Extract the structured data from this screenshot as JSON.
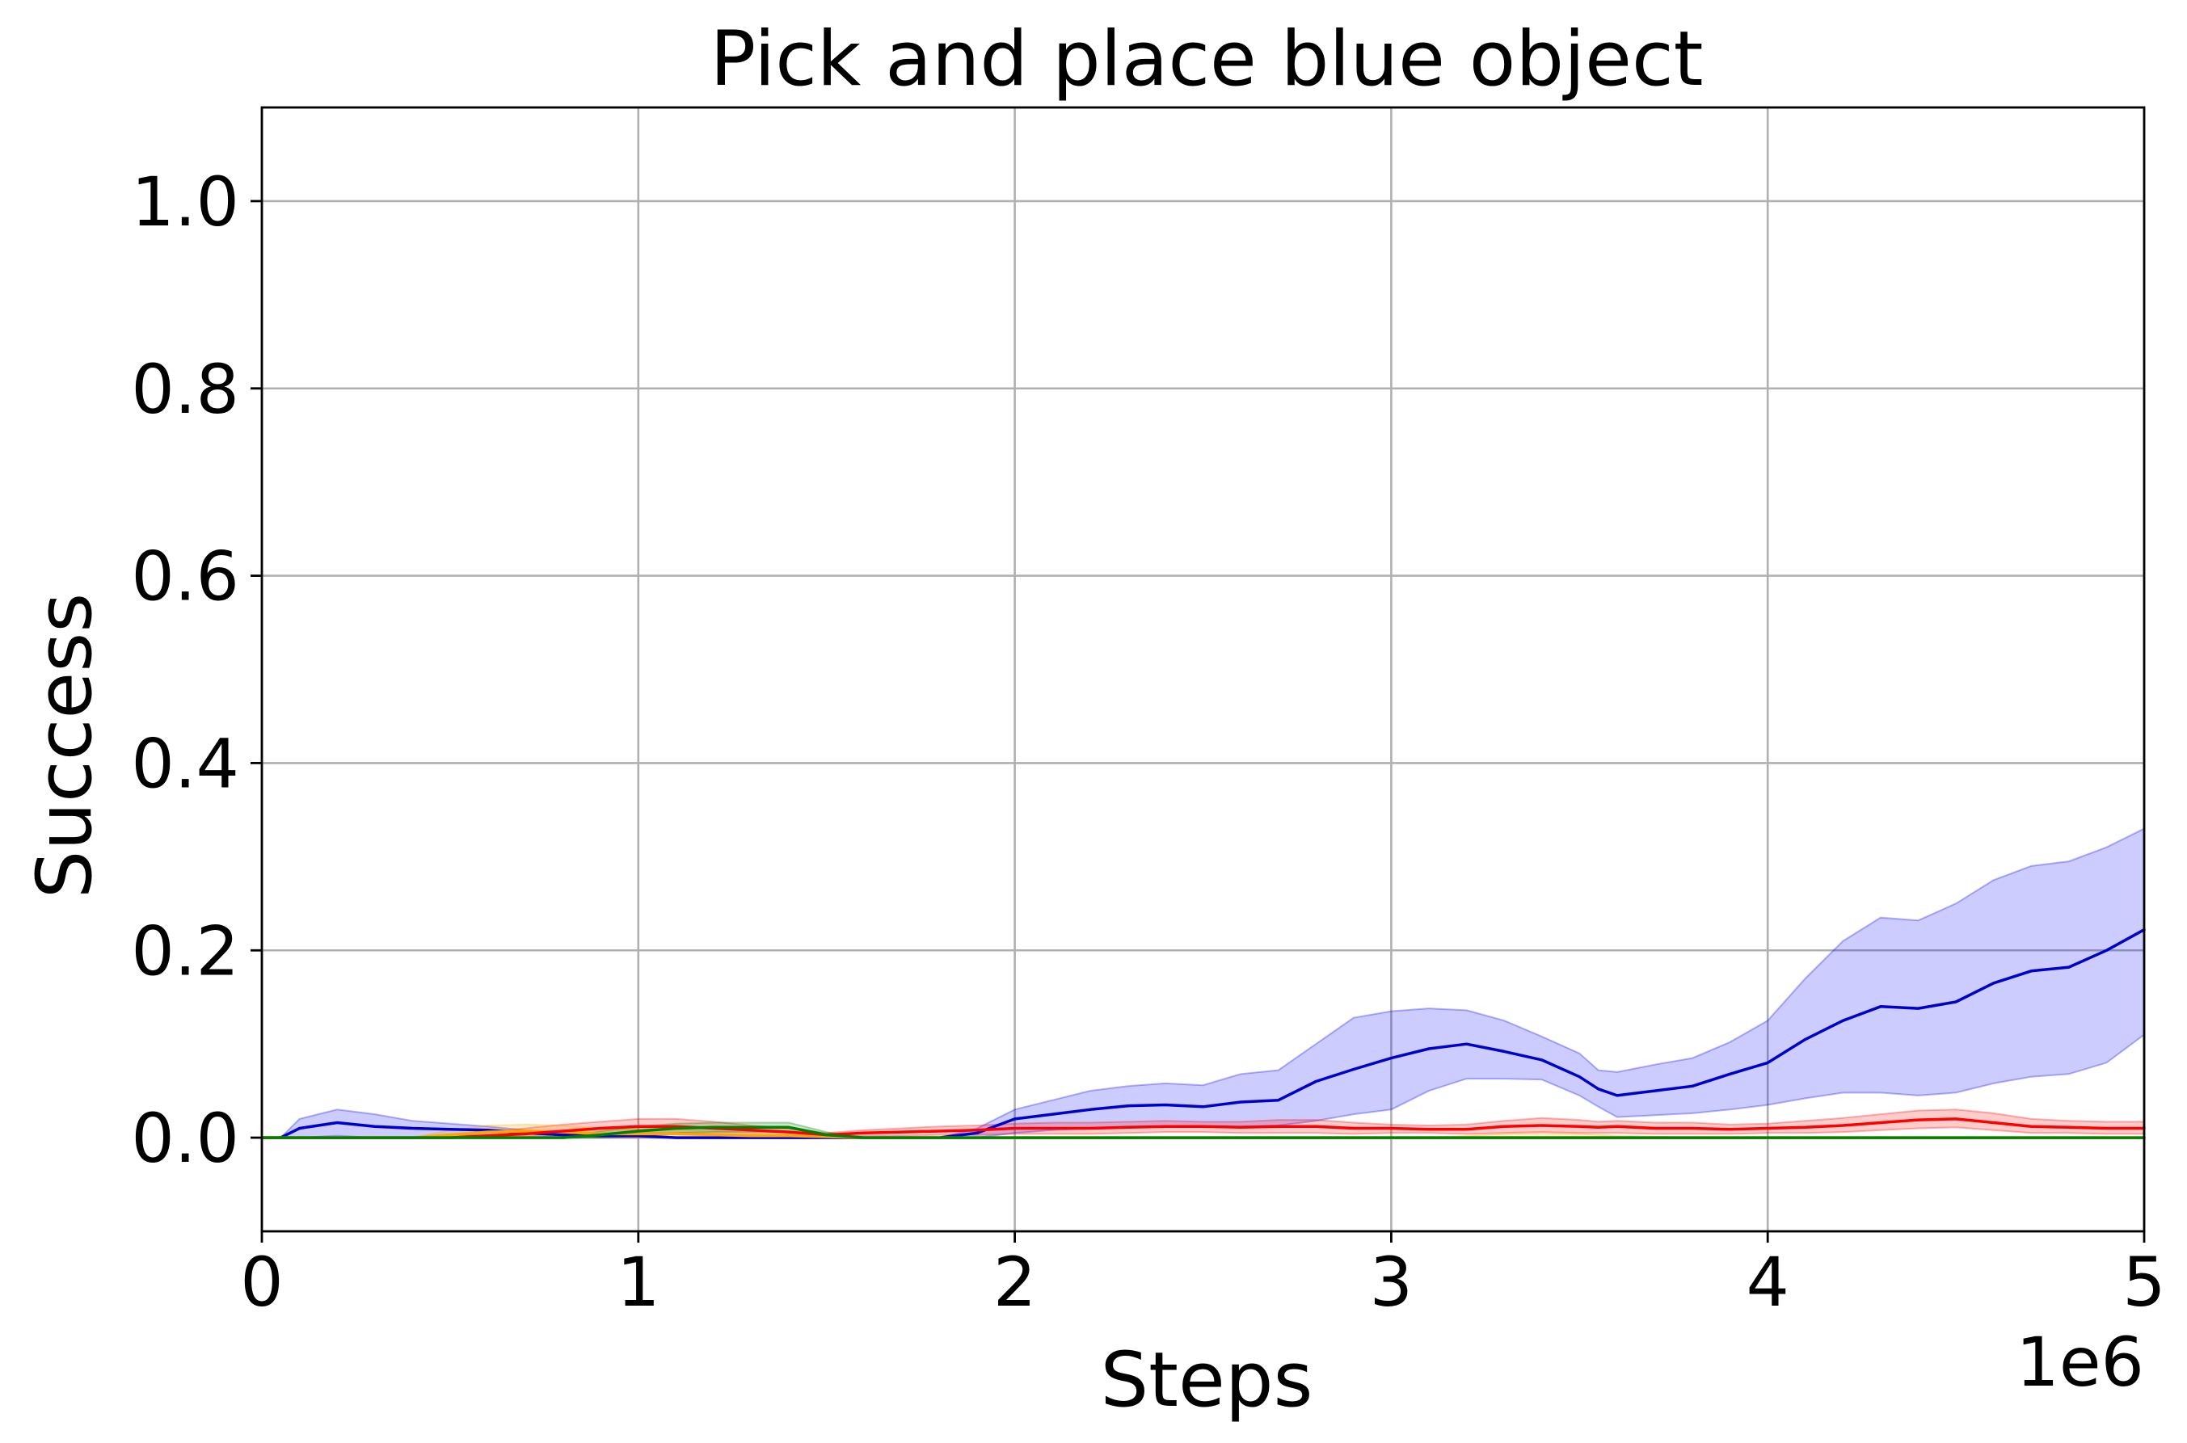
{
  "chart_data": {
    "type": "line",
    "title": "Pick and place blue object",
    "xlabel": "Steps",
    "ylabel": "Success",
    "x_offset_label": "1e6",
    "xlim": [
      0,
      5
    ],
    "ylim": [
      -0.1,
      1.1
    ],
    "xticks": [
      0,
      1,
      2,
      3,
      4,
      5
    ],
    "xtick_labels": [
      "0",
      "1",
      "2",
      "3",
      "4",
      "5"
    ],
    "yticks": [
      0.0,
      0.2,
      0.4,
      0.6,
      0.8,
      1.0
    ],
    "ytick_labels": [
      "0.0",
      "0.2",
      "0.4",
      "0.6",
      "0.8",
      "1.0"
    ],
    "grid": true,
    "x": [
      0.05,
      0.1,
      0.2,
      0.3,
      0.4,
      0.5,
      0.6,
      0.7,
      0.8,
      0.9,
      1.0,
      1.1,
      1.2,
      1.3,
      1.4,
      1.5,
      1.6,
      1.7,
      1.8,
      1.9,
      2.0,
      2.1,
      2.2,
      2.3,
      2.4,
      2.5,
      2.6,
      2.7,
      2.8,
      2.9,
      3.0,
      3.1,
      3.2,
      3.3,
      3.4,
      3.5,
      3.55,
      3.6,
      3.7,
      3.8,
      3.9,
      4.0,
      4.1,
      4.2,
      4.3,
      4.4,
      4.5,
      4.6,
      4.7,
      4.8,
      4.9,
      5.0
    ],
    "series": [
      {
        "color": "#0000cc",
        "band_color": "#0000ff",
        "values": [
          0.0,
          0.01,
          0.016,
          0.012,
          0.01,
          0.009,
          0.008,
          0.005,
          0.003,
          0.002,
          0.002,
          0.0,
          0.0,
          0.0,
          0.0,
          0.0,
          0.0,
          0.0,
          0.0,
          0.005,
          0.02,
          0.025,
          0.03,
          0.034,
          0.035,
          0.033,
          0.038,
          0.04,
          0.06,
          0.073,
          0.085,
          0.095,
          0.1,
          0.092,
          0.083,
          0.065,
          0.052,
          0.045,
          0.05,
          0.055,
          0.068,
          0.08,
          0.105,
          0.125,
          0.14,
          0.138,
          0.145,
          0.165,
          0.178,
          0.182,
          0.2,
          0.222
        ],
        "upper": [
          0.0,
          0.02,
          0.03,
          0.025,
          0.018,
          0.015,
          0.012,
          0.008,
          0.005,
          0.003,
          0.003,
          0.0,
          0.0,
          0.0,
          0.0,
          0.0,
          0.0,
          0.0,
          0.0,
          0.01,
          0.03,
          0.04,
          0.05,
          0.055,
          0.058,
          0.056,
          0.068,
          0.072,
          0.1,
          0.128,
          0.135,
          0.138,
          0.136,
          0.125,
          0.108,
          0.09,
          0.072,
          0.07,
          0.078,
          0.085,
          0.102,
          0.125,
          0.17,
          0.21,
          0.235,
          0.232,
          0.25,
          0.275,
          0.29,
          0.295,
          0.31,
          0.33
        ],
        "lower": [
          0.0,
          0.0,
          0.002,
          0.0,
          0.0,
          0.0,
          0.0,
          0.0,
          0.0,
          0.0,
          0.0,
          0.0,
          0.0,
          0.0,
          0.0,
          0.0,
          0.0,
          0.0,
          0.0,
          0.0,
          0.005,
          0.008,
          0.01,
          0.012,
          0.012,
          0.012,
          0.012,
          0.013,
          0.018,
          0.025,
          0.03,
          0.05,
          0.063,
          0.063,
          0.062,
          0.045,
          0.033,
          0.022,
          0.024,
          0.026,
          0.03,
          0.035,
          0.042,
          0.048,
          0.048,
          0.045,
          0.048,
          0.058,
          0.065,
          0.068,
          0.08,
          0.11
        ]
      },
      {
        "color": "#ff0000",
        "band_color": "#ff0000",
        "values": [
          0.0,
          0.0,
          0.0,
          0.0,
          0.0,
          0.0,
          0.002,
          0.004,
          0.007,
          0.01,
          0.012,
          0.012,
          0.01,
          0.008,
          0.006,
          0.003,
          0.005,
          0.006,
          0.007,
          0.008,
          0.01,
          0.01,
          0.01,
          0.011,
          0.012,
          0.012,
          0.011,
          0.012,
          0.012,
          0.01,
          0.01,
          0.009,
          0.009,
          0.012,
          0.013,
          0.012,
          0.011,
          0.012,
          0.01,
          0.01,
          0.009,
          0.01,
          0.011,
          0.013,
          0.016,
          0.019,
          0.02,
          0.016,
          0.012,
          0.011,
          0.01,
          0.01
        ],
        "upper": [
          0.0,
          0.0,
          0.0,
          0.0,
          0.0,
          0.0,
          0.006,
          0.01,
          0.014,
          0.017,
          0.02,
          0.02,
          0.017,
          0.013,
          0.01,
          0.005,
          0.008,
          0.01,
          0.012,
          0.013,
          0.015,
          0.016,
          0.016,
          0.017,
          0.018,
          0.017,
          0.017,
          0.019,
          0.019,
          0.016,
          0.014,
          0.013,
          0.014,
          0.018,
          0.021,
          0.019,
          0.017,
          0.018,
          0.016,
          0.016,
          0.014,
          0.015,
          0.018,
          0.021,
          0.025,
          0.029,
          0.03,
          0.026,
          0.02,
          0.018,
          0.017,
          0.017
        ],
        "lower": [
          0.0,
          0.0,
          0.0,
          0.0,
          0.0,
          0.0,
          0.0,
          0.0,
          0.001,
          0.004,
          0.005,
          0.005,
          0.004,
          0.003,
          0.002,
          0.001,
          0.002,
          0.002,
          0.003,
          0.003,
          0.004,
          0.004,
          0.004,
          0.005,
          0.006,
          0.006,
          0.005,
          0.005,
          0.005,
          0.004,
          0.005,
          0.005,
          0.004,
          0.005,
          0.006,
          0.005,
          0.005,
          0.005,
          0.004,
          0.004,
          0.004,
          0.005,
          0.005,
          0.006,
          0.008,
          0.01,
          0.011,
          0.008,
          0.005,
          0.005,
          0.004,
          0.004
        ]
      },
      {
        "color": "#ffa500",
        "band_color": "#ffa500",
        "values": [
          0.0,
          0.0,
          0.0,
          0.0,
          0.0,
          0.003,
          0.006,
          0.007,
          0.006,
          0.004,
          0.004,
          0.004,
          0.003,
          0.002,
          0.002,
          0.001,
          0.0,
          0.0,
          0.0,
          0.0,
          0.0,
          0.0,
          0.0,
          0.0,
          0.0,
          0.0,
          0.0,
          0.0,
          0.0,
          0.0,
          0.0,
          0.0,
          0.0,
          0.0,
          0.0,
          0.0,
          0.0,
          0.0,
          0.0,
          0.0,
          0.0,
          0.0,
          0.0,
          0.0,
          0.0,
          0.0,
          0.0,
          0.0,
          0.0,
          0.0,
          0.0,
          0.0
        ],
        "upper": [
          0.0,
          0.0,
          0.0,
          0.0,
          0.0,
          0.008,
          0.013,
          0.014,
          0.013,
          0.01,
          0.009,
          0.009,
          0.007,
          0.005,
          0.004,
          0.002,
          0.0,
          0.0,
          0.0,
          0.0,
          0.0,
          0.0,
          0.0,
          0.0,
          0.0,
          0.0,
          0.0,
          0.0,
          0.0,
          0.0,
          0.0,
          0.0,
          0.002,
          0.004,
          0.005,
          0.004,
          0.003,
          0.002,
          0.001,
          0.0,
          0.0,
          0.0,
          0.0,
          0.0,
          0.0,
          0.0,
          0.0,
          0.0,
          0.0,
          0.0,
          0.0,
          0.0
        ],
        "lower": [
          0.0,
          0.0,
          0.0,
          0.0,
          0.0,
          0.0,
          0.0,
          0.0,
          0.0,
          0.0,
          0.0,
          0.0,
          0.0,
          0.0,
          0.0,
          0.0,
          0.0,
          0.0,
          0.0,
          0.0,
          0.0,
          0.0,
          0.0,
          0.0,
          0.0,
          0.0,
          0.0,
          0.0,
          0.0,
          0.0,
          0.0,
          0.0,
          0.0,
          0.0,
          0.0,
          0.0,
          0.0,
          0.0,
          0.0,
          0.0,
          0.0,
          0.0,
          0.0,
          0.0,
          0.0,
          0.0,
          0.0,
          0.0,
          0.0,
          0.0,
          0.0,
          0.0
        ]
      },
      {
        "color": "#008000",
        "band_color": "#008000",
        "values": [
          0.0,
          0.0,
          0.0,
          0.0,
          0.0,
          0.0,
          0.0,
          0.0,
          0.0,
          0.003,
          0.007,
          0.01,
          0.011,
          0.011,
          0.011,
          0.003,
          0.0,
          0.0,
          0.0,
          0.0,
          0.0,
          0.0,
          0.0,
          0.0,
          0.0,
          0.0,
          0.0,
          0.0,
          0.0,
          0.0,
          0.0,
          0.0,
          0.0,
          0.0,
          0.0,
          0.0,
          0.0,
          0.0,
          0.0,
          0.0,
          0.0,
          0.0,
          0.0,
          0.0,
          0.0,
          0.0,
          0.0,
          0.0,
          0.0,
          0.0,
          0.0,
          0.0
        ],
        "upper": [
          0.0,
          0.0,
          0.0,
          0.0,
          0.0,
          0.0,
          0.0,
          0.0,
          0.0,
          0.007,
          0.012,
          0.015,
          0.016,
          0.016,
          0.016,
          0.006,
          0.0,
          0.0,
          0.0,
          0.0,
          0.0,
          0.0,
          0.0,
          0.0,
          0.0,
          0.0,
          0.0,
          0.0,
          0.0,
          0.0,
          0.0,
          0.0,
          0.0,
          0.0,
          0.0,
          0.0,
          0.0,
          0.0,
          0.0,
          0.0,
          0.0,
          0.0,
          0.0,
          0.0,
          0.0,
          0.0,
          0.0,
          0.0,
          0.0,
          0.0,
          0.0,
          0.0
        ],
        "lower": [
          0.0,
          0.0,
          0.0,
          0.0,
          0.0,
          0.0,
          0.0,
          0.0,
          0.0,
          0.0,
          0.002,
          0.005,
          0.006,
          0.006,
          0.006,
          0.0,
          0.0,
          0.0,
          0.0,
          0.0,
          0.0,
          0.0,
          0.0,
          0.0,
          0.0,
          0.0,
          0.0,
          0.0,
          0.0,
          0.0,
          0.0,
          0.0,
          0.0,
          0.0,
          0.0,
          0.0,
          0.0,
          0.0,
          0.0,
          0.0,
          0.0,
          0.0,
          0.0,
          0.0,
          0.0,
          0.0,
          0.0,
          0.0,
          0.0,
          0.0,
          0.0,
          0.0
        ]
      }
    ]
  }
}
